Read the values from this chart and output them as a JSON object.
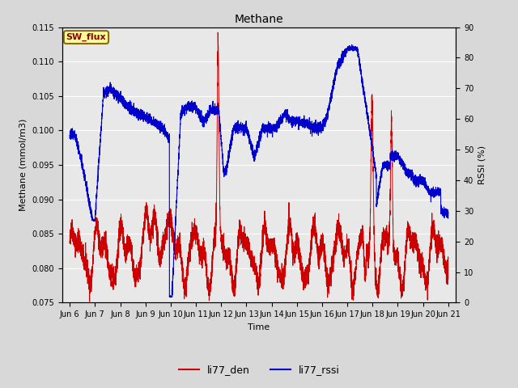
{
  "title": "Methane",
  "ylabel_left": "Methane (mmol/m3)",
  "ylabel_right": "RSSI (%)",
  "xlabel": "Time",
  "ylim_left": [
    0.075,
    0.115
  ],
  "ylim_right": [
    0,
    90
  ],
  "yticks_left": [
    0.075,
    0.08,
    0.085,
    0.09,
    0.095,
    0.1,
    0.105,
    0.11,
    0.115
  ],
  "yticks_right": [
    0,
    10,
    20,
    30,
    40,
    50,
    60,
    70,
    80,
    90
  ],
  "background_color": "#e8e8e8",
  "line_color_red": "#cc0000",
  "line_color_blue": "#0000cc",
  "legend_labels": [
    "li77_den",
    "li77_rssi"
  ],
  "annotation_text": "SW_flux",
  "annotation_bg": "#ffff99",
  "annotation_border": "#8B6914",
  "annotation_text_color": "#8B0000",
  "grid_color": "#ffffff",
  "fig_bg": "#d8d8d8",
  "xlim_days": [
    5.7,
    21.3
  ],
  "xtick_positions": [
    6,
    7,
    8,
    9,
    10,
    11,
    12,
    13,
    14,
    15,
    16,
    17,
    18,
    19,
    20,
    21
  ],
  "xtick_labels": [
    "Jun 6",
    "Jun 7",
    "Jun 8",
    "Jun 9",
    "Jun 10",
    "Jun 11",
    "Jun 12",
    "Jun 13",
    "Jun 14",
    "Jun 15",
    "Jun 16",
    "Jun 17",
    "Jun 18",
    "Jun 19",
    "Jun 20",
    "Jun 21"
  ]
}
